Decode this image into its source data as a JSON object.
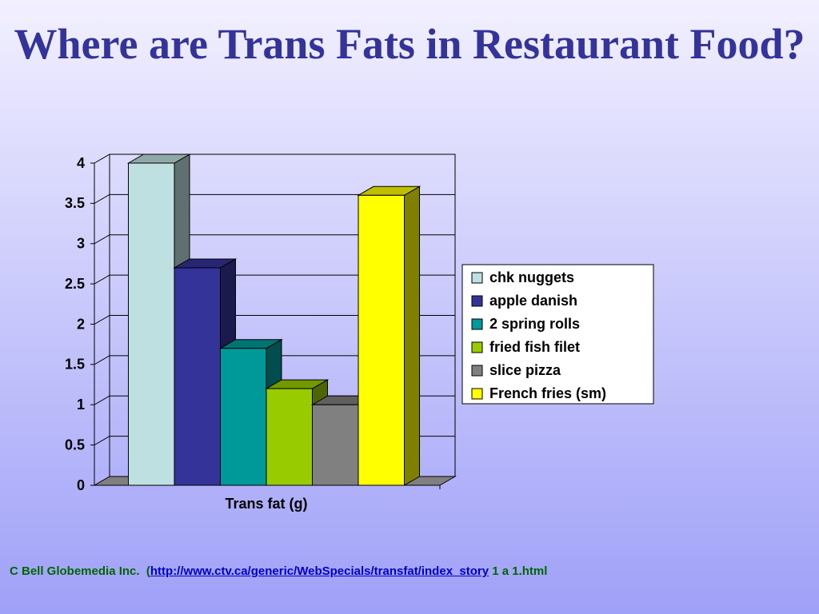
{
  "chart_data": {
    "type": "bar3d",
    "title": "Where are Trans Fats in Restaurant Food?",
    "categories": [
      "Trans fat (g)"
    ],
    "series": [
      {
        "name": "chk nuggets",
        "color": "#bfe0e0",
        "values": [
          4
        ]
      },
      {
        "name": "apple danish",
        "color": "#333399",
        "values": [
          2.7
        ]
      },
      {
        "name": "2 spring rolls",
        "color": "#009999",
        "values": [
          1.7
        ]
      },
      {
        "name": "fried fish filet",
        "color": "#99cc00",
        "values": [
          1.2
        ]
      },
      {
        "name": "slice pizza",
        "color": "#808080",
        "values": [
          1
        ]
      },
      {
        "name": "French fries (sm)",
        "color": "#ffff00",
        "values": [
          3.6
        ]
      }
    ],
    "ylim": [
      0,
      4
    ],
    "yticks": [
      0,
      0.5,
      1,
      1.5,
      2,
      2.5,
      3,
      3.5,
      4
    ],
    "grid": true,
    "legend": "right"
  },
  "source": {
    "prefix": "C Bell Globemedia Inc.  (",
    "link": "http://www.ctv.ca/generic/WebSpecials/transfat/index_story",
    "suffix": " 1 a 1.html"
  }
}
